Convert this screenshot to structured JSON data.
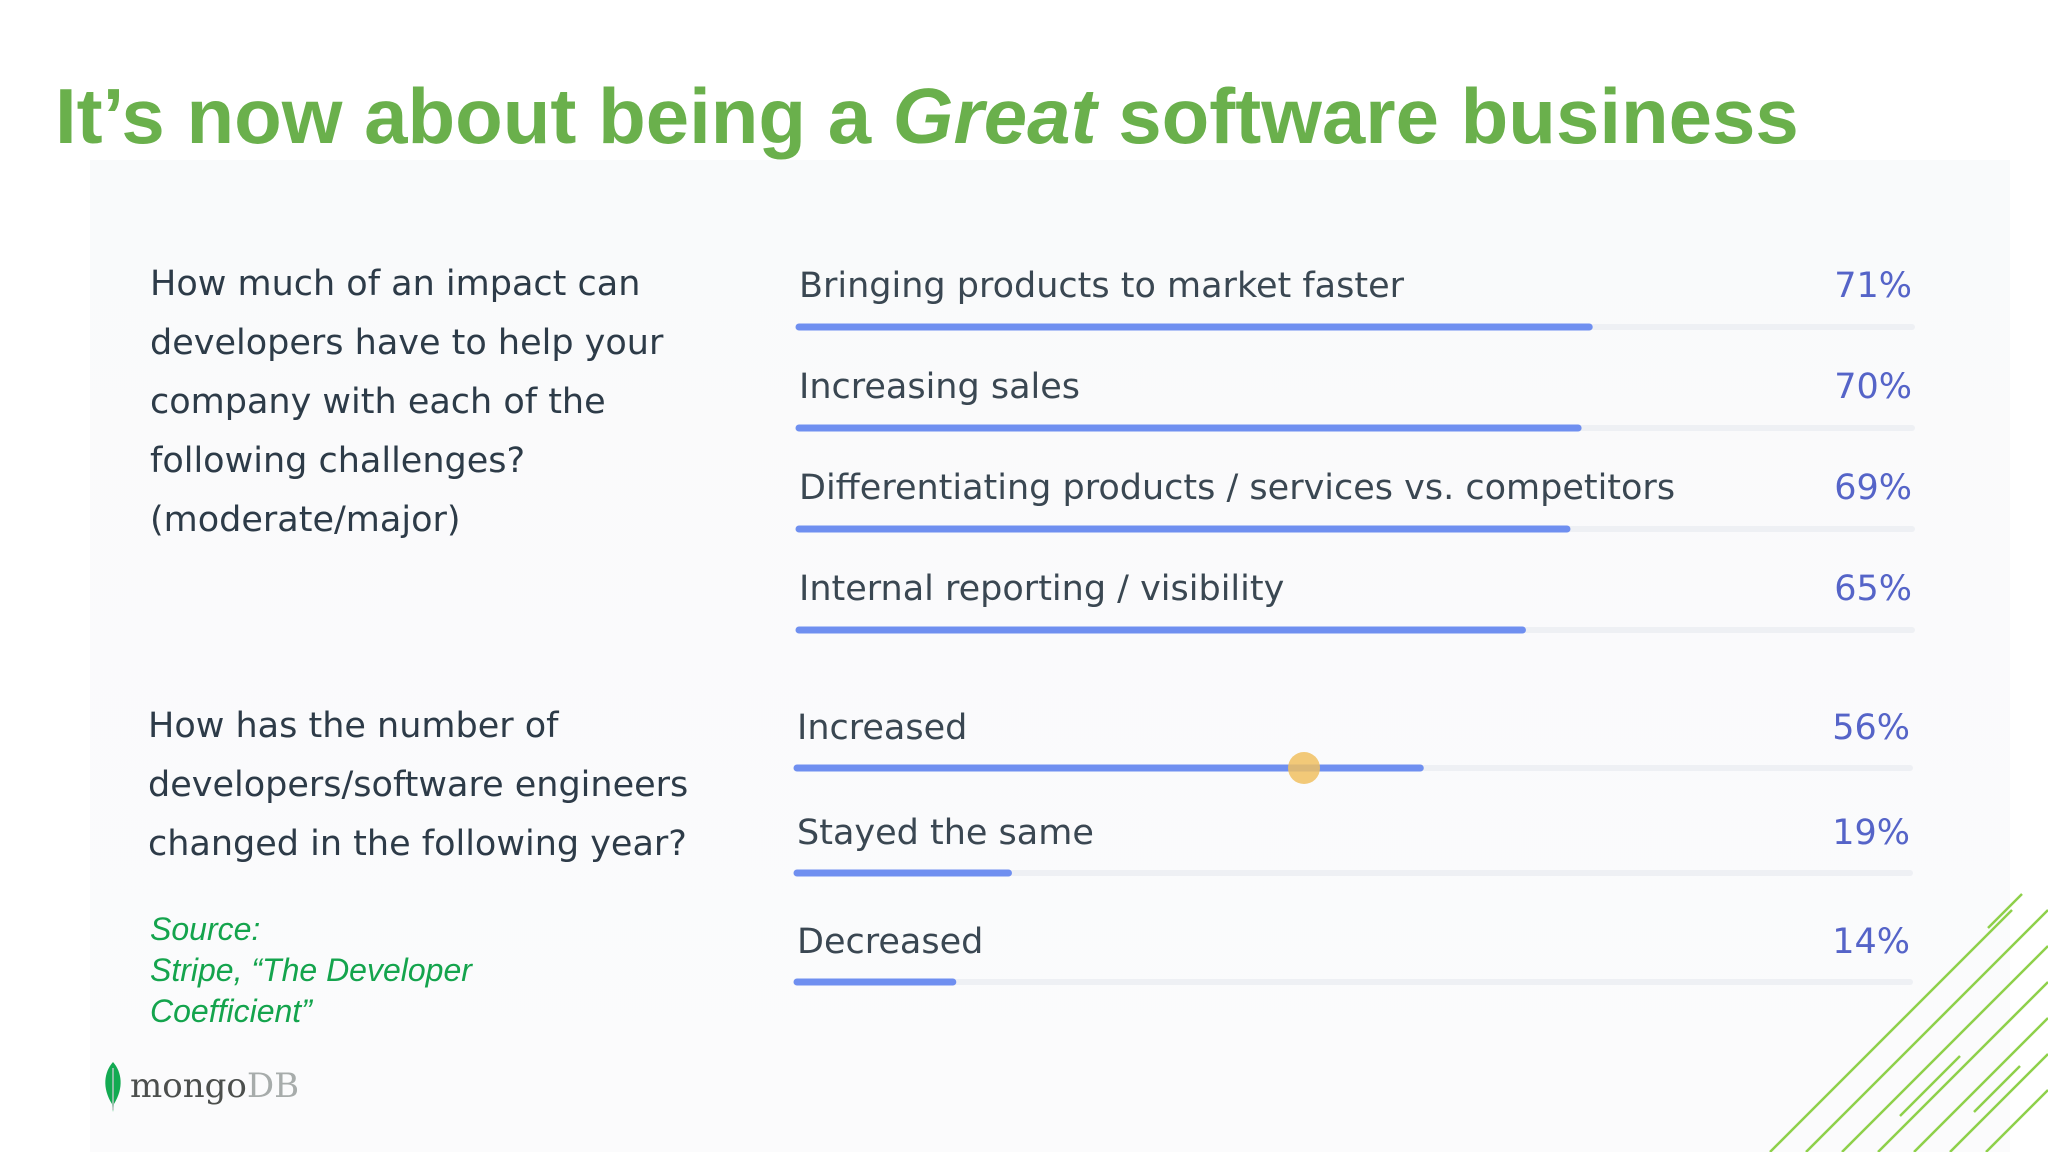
{
  "slide": {
    "title_prefix": "It’s now about being a ",
    "title_emphasis": "Great",
    "title_suffix": " software business",
    "title_color": "#6ab04c"
  },
  "questions": {
    "q1": "How much of an impact can developers have to help your company with each of the following challenges? (moderate/major)",
    "q2": "How has the number of developers/software engineers changed in the following year?"
  },
  "source": {
    "label": "Source:",
    "line1": "Stripe, “The Developer",
    "line2": "Coefficient”",
    "color": "#14a44d"
  },
  "logo": {
    "mongo": "mongo",
    "db": "DB"
  },
  "colors": {
    "bar": "#6f8ff0",
    "track": "#eef0f4",
    "label": "#3a4752",
    "value": "#5564c8",
    "highlight": "#f0c060"
  },
  "chart_data": [
    {
      "type": "bar",
      "orientation": "horizontal",
      "question": "How much of an impact can developers have to help your company with each of the following challenges? (moderate/major)",
      "categories": [
        "Bringing products to market faster",
        "Increasing sales",
        "Differentiating products / services vs. competitors",
        "Internal reporting / visibility"
      ],
      "values": [
        71,
        70,
        69,
        65
      ],
      "labels": [
        "71%",
        "70%",
        "69%",
        "65%"
      ],
      "xlim": [
        0,
        100
      ],
      "unit": "%"
    },
    {
      "type": "bar",
      "orientation": "horizontal",
      "question": "How has the number of developers/software engineers changed in the following year?",
      "categories": [
        "Increased",
        "Stayed the same",
        "Decreased"
      ],
      "values": [
        56,
        19,
        14
      ],
      "labels": [
        "56%",
        "19%",
        "14%"
      ],
      "xlim": [
        0,
        100
      ],
      "unit": "%"
    }
  ]
}
